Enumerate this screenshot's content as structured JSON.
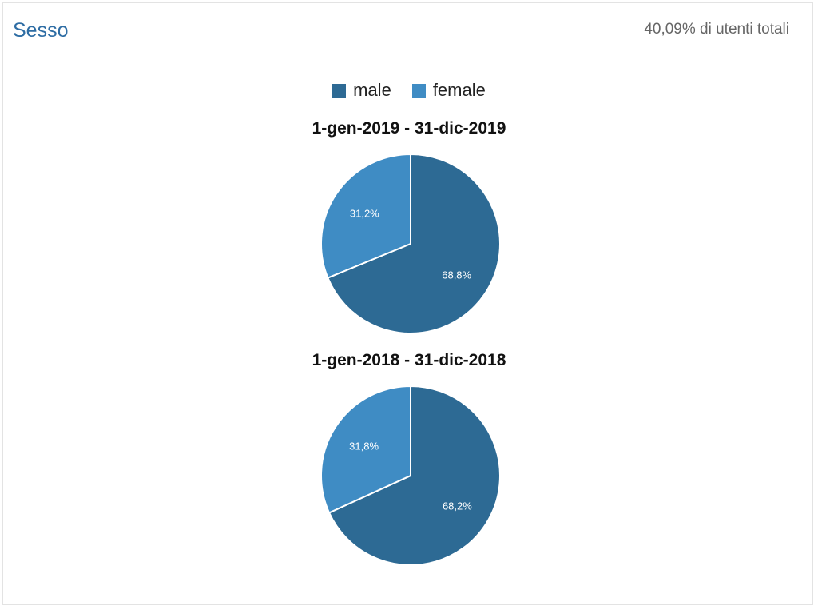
{
  "panel": {
    "title": "Sesso",
    "subtitle": "40,09% di utenti totali"
  },
  "colors": {
    "male": "#2d6a94",
    "female": "#3f8cc4",
    "title": "#2e6da4"
  },
  "legend": [
    {
      "label": "male",
      "color": "#2d6a94"
    },
    {
      "label": "female",
      "color": "#3f8cc4"
    }
  ],
  "chart_data": [
    {
      "type": "pie",
      "title": "1-gen-2019 - 31-dic-2019",
      "slices": [
        {
          "label": "male",
          "value": 68.8,
          "text": "68,8%"
        },
        {
          "label": "female",
          "value": 31.2,
          "text": "31,2%"
        }
      ]
    },
    {
      "type": "pie",
      "title": "1-gen-2018 - 31-dic-2018",
      "slices": [
        {
          "label": "male",
          "value": 68.2,
          "text": "68,2%"
        },
        {
          "label": "female",
          "value": 31.8,
          "text": "31,8%"
        }
      ]
    }
  ]
}
